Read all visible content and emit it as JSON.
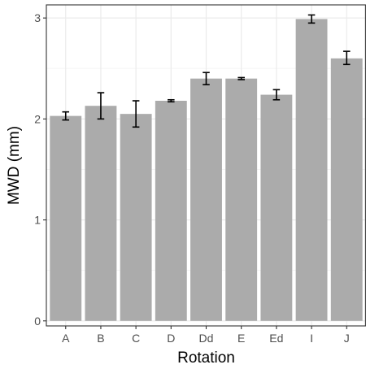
{
  "chart_data": {
    "type": "bar",
    "title": "",
    "xlabel": "Rotation",
    "ylabel": "MWD (mm)",
    "categories": [
      "A",
      "B",
      "C",
      "D",
      "Dd",
      "E",
      "Ed",
      "I",
      "J"
    ],
    "values": [
      2.03,
      2.13,
      2.05,
      2.18,
      2.4,
      2.4,
      2.24,
      2.99,
      2.6
    ],
    "errors": [
      [
        1.99,
        2.07
      ],
      [
        2.0,
        2.26
      ],
      [
        1.92,
        2.18
      ],
      [
        2.17,
        2.19
      ],
      [
        2.34,
        2.46
      ],
      [
        2.39,
        2.41
      ],
      [
        2.19,
        2.29
      ],
      [
        2.95,
        3.03
      ],
      [
        2.54,
        2.67
      ]
    ],
    "ylim": [
      -0.05,
      3.13
    ],
    "yticks": [
      0,
      1,
      2,
      3
    ],
    "ytick_labels": [
      "0",
      "1",
      "2",
      "3"
    ],
    "grid": true,
    "colors": {
      "bar": "#ababab",
      "error": "#000000",
      "grid_major": "#ebebeb",
      "grid_minor": "#f5f5f5",
      "panel_border": "#333333",
      "background": "#ffffff"
    }
  }
}
